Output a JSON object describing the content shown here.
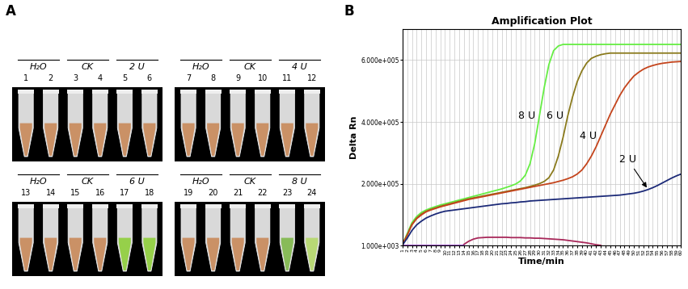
{
  "panel_labels": [
    "A",
    "B"
  ],
  "tube_panel": {
    "blocks": [
      {
        "groups": [
          {
            "label": "H₂O",
            "tubes": [
              1,
              2
            ]
          },
          {
            "label": "CK",
            "tubes": [
              3,
              4
            ]
          },
          {
            "label": "2 U",
            "tubes": [
              5,
              6
            ]
          }
        ],
        "colors": [
          "#c98a5a",
          "#c98a5a",
          "#c98a5a",
          "#c98a5a",
          "#c98a5a",
          "#c98a5a"
        ]
      },
      {
        "groups": [
          {
            "label": "H₂O",
            "tubes": [
              7,
              8
            ]
          },
          {
            "label": "CK",
            "tubes": [
              9,
              10
            ]
          },
          {
            "label": "4 U",
            "tubes": [
              11,
              12
            ]
          }
        ],
        "colors": [
          "#c98a5a",
          "#c98a5a",
          "#c98a5a",
          "#c98a5a",
          "#c98a5a",
          "#c98a5a"
        ]
      },
      {
        "groups": [
          {
            "label": "H₂O",
            "tubes": [
              13,
              14
            ]
          },
          {
            "label": "CK",
            "tubes": [
              15,
              16
            ]
          },
          {
            "label": "6 U",
            "tubes": [
              17,
              18
            ]
          }
        ],
        "colors": [
          "#c98a5a",
          "#c98a5a",
          "#c98a5a",
          "#c98a5a",
          "#8fcf3a",
          "#8fcf3a"
        ]
      },
      {
        "groups": [
          {
            "label": "H₂O",
            "tubes": [
              19,
              20
            ]
          },
          {
            "label": "CK",
            "tubes": [
              21,
              22
            ]
          },
          {
            "label": "8 U",
            "tubes": [
              23,
              24
            ]
          }
        ],
        "colors": [
          "#c98a5a",
          "#c98a5a",
          "#c98a5a",
          "#c98a5a",
          "#7fb84a",
          "#b5d86a"
        ]
      }
    ]
  },
  "chart_data": {
    "type": "line",
    "title": "Amplification Plot",
    "x_label": "Time/min",
    "y_label": "Delta Rn",
    "x": [
      1,
      2,
      3,
      4,
      5,
      6,
      7,
      8,
      9,
      10,
      11,
      12,
      13,
      14,
      15,
      16,
      17,
      18,
      19,
      20,
      21,
      22,
      23,
      24,
      25,
      26,
      27,
      28,
      29,
      30,
      31,
      32,
      33,
      34,
      35,
      36,
      37,
      38,
      39,
      40,
      41,
      42,
      43,
      44,
      45,
      46,
      47,
      48,
      49,
      50,
      51,
      52,
      53,
      54,
      55,
      56,
      57,
      58,
      59,
      60
    ],
    "xlim": [
      1,
      60
    ],
    "xticks": [
      1,
      2,
      3,
      4,
      5,
      6,
      7,
      8,
      9,
      10,
      11,
      12,
      13,
      14,
      15,
      16,
      17,
      18,
      19,
      20,
      21,
      22,
      23,
      24,
      25,
      26,
      27,
      28,
      29,
      30,
      31,
      32,
      33,
      34,
      35,
      36,
      37,
      38,
      39,
      40,
      41,
      42,
      43,
      44,
      45,
      46,
      47,
      48,
      49,
      50,
      51,
      52,
      53,
      54,
      55,
      56,
      57,
      58,
      59,
      60
    ],
    "ylim": [
      1000,
      700000
    ],
    "yticks": [
      {
        "value": 1000,
        "label": "1.000e+003"
      },
      {
        "value": 200000,
        "label": "2.000e+005"
      },
      {
        "value": 400000,
        "label": "4.000e+005"
      },
      {
        "value": 600000,
        "label": "6.000e+005"
      }
    ],
    "grid": true,
    "series": [
      {
        "name": "8 U",
        "color": "#66ee44",
        "values": [
          5000,
          40000,
          75000,
          95000,
          108000,
          116000,
          122000,
          127000,
          132000,
          136000,
          140000,
          144000,
          148000,
          152000,
          156000,
          160000,
          164000,
          168000,
          172000,
          176000,
          180000,
          184000,
          189000,
          194000,
          200000,
          210000,
          228000,
          265000,
          330000,
          420000,
          510000,
          585000,
          630000,
          645000,
          650000,
          650000,
          650000,
          650000,
          650000,
          650000,
          650000,
          650000,
          650000,
          650000,
          650000,
          650000,
          650000,
          650000,
          650000,
          650000,
          650000,
          650000,
          650000,
          650000,
          650000,
          650000,
          650000,
          650000,
          650000,
          650000
        ]
      },
      {
        "name": "6 U",
        "color": "#8a7a1c",
        "values": [
          5000,
          35000,
          70000,
          90000,
          103000,
          112000,
          118000,
          123000,
          128000,
          132000,
          136000,
          140000,
          144000,
          148000,
          152000,
          155000,
          158000,
          161000,
          164000,
          167000,
          170000,
          173000,
          176000,
          179000,
          182000,
          185000,
          188000,
          192000,
          196000,
          201000,
          208000,
          220000,
          245000,
          290000,
          350000,
          420000,
          480000,
          530000,
          565000,
          590000,
          605000,
          612000,
          617000,
          620000,
          622000,
          622000,
          622000,
          622000,
          622000,
          622000,
          622000,
          622000,
          622000,
          622000,
          622000,
          622000,
          622000,
          622000,
          622000,
          622000
        ]
      },
      {
        "name": "4 U",
        "color": "#c4441c",
        "values": [
          5000,
          35000,
          68000,
          88000,
          100000,
          110000,
          116000,
          121000,
          126000,
          130000,
          134000,
          138000,
          142000,
          146000,
          150000,
          153000,
          156000,
          159000,
          162000,
          165000,
          168000,
          171000,
          174000,
          177000,
          180000,
          183000,
          186000,
          189000,
          192000,
          195000,
          198000,
          201000,
          204000,
          208000,
          212000,
          217000,
          223000,
          232000,
          245000,
          265000,
          290000,
          320000,
          355000,
          390000,
          425000,
          455000,
          485000,
          510000,
          530000,
          548000,
          560000,
          570000,
          577000,
          582000,
          586000,
          589000,
          591000,
          593000,
          594000,
          595000
        ]
      },
      {
        "name": "2 U",
        "color": "#1c2a78",
        "values": [
          3000,
          25000,
          50000,
          68000,
          80000,
          90000,
          97000,
          103000,
          108000,
          112000,
          114000,
          116000,
          118000,
          120000,
          122000,
          124000,
          126000,
          128000,
          130000,
          132000,
          134000,
          136000,
          137000,
          139000,
          140000,
          142000,
          143000,
          145000,
          146000,
          147000,
          148000,
          149000,
          150000,
          151000,
          152000,
          153000,
          154000,
          155000,
          156000,
          157000,
          158000,
          159000,
          160000,
          161000,
          162000,
          163000,
          164000,
          166000,
          168000,
          170000,
          173000,
          177000,
          182000,
          188000,
          195000,
          203000,
          211000,
          219000,
          226000,
          232000
        ]
      },
      {
        "color": "#a8285a",
        "values": [
          null,
          null,
          null,
          null,
          null,
          null,
          null,
          null,
          null,
          null,
          null,
          null,
          null,
          5000,
          15000,
          22000,
          26000,
          27000,
          28000,
          28000,
          28000,
          28000,
          28000,
          27000,
          27000,
          27000,
          26000,
          26000,
          25000,
          25000,
          24000,
          23000,
          22000,
          21000,
          20000,
          18000,
          16000,
          14000,
          12000,
          10000,
          7000,
          4000,
          2000,
          null,
          null,
          null,
          null,
          null,
          null,
          null,
          null,
          null,
          null,
          null,
          null,
          null,
          null,
          null,
          null,
          null
        ]
      },
      {
        "color": "#9a44cc",
        "values": [
          1000,
          1000,
          1000,
          1000,
          1000,
          1000,
          1000,
          1000,
          1000,
          1000,
          1000,
          1000,
          1000,
          1000,
          null,
          null,
          null,
          null,
          null,
          null,
          null,
          null,
          null,
          null,
          null,
          null,
          null,
          null,
          null,
          null,
          null,
          null,
          null,
          null,
          null,
          null,
          null,
          null,
          null,
          null,
          null,
          null,
          null,
          null,
          null,
          null,
          null,
          null,
          null,
          null,
          null,
          null,
          null,
          null,
          null,
          null,
          null,
          null,
          null,
          null
        ]
      }
    ]
  }
}
